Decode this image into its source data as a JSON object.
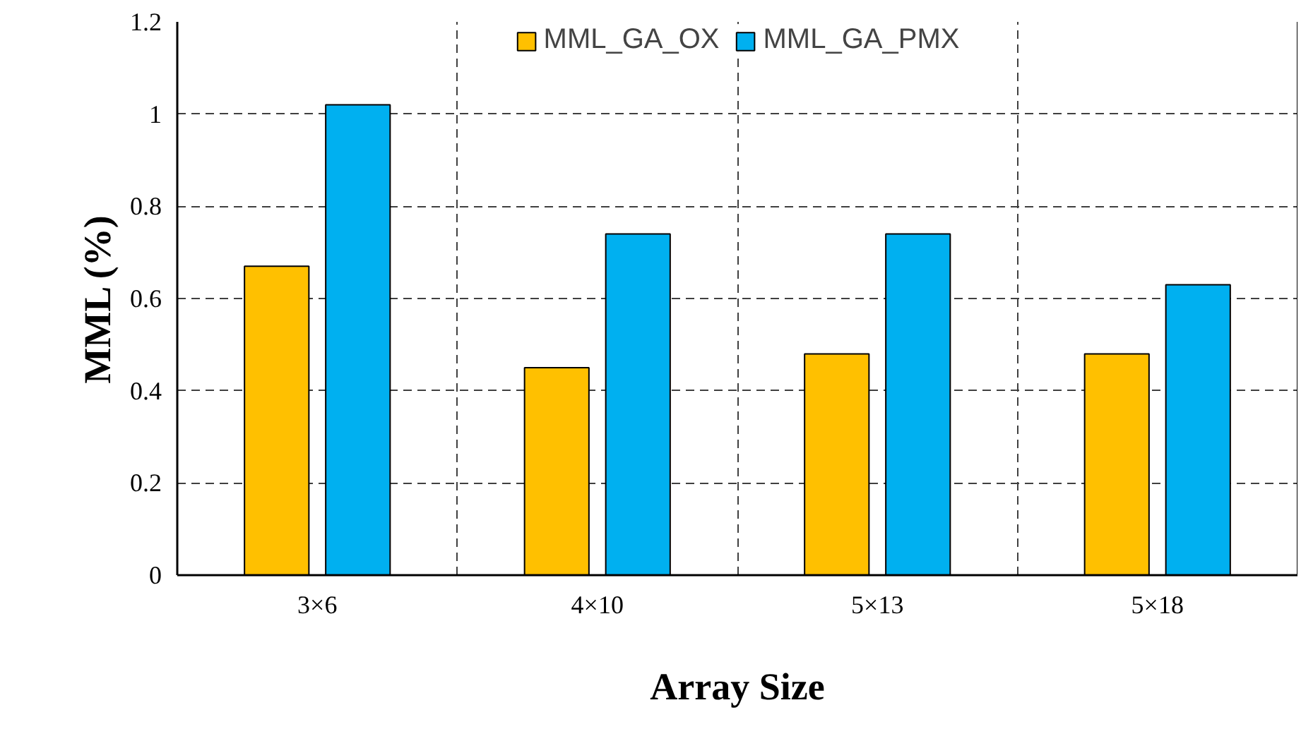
{
  "chart_data": {
    "type": "bar",
    "xlabel": "Array Size",
    "ylabel": "MML (%)",
    "categories": [
      "3×6",
      "4×10",
      "5×13",
      "5×18"
    ],
    "series": [
      {
        "name": "MML_GA_OX",
        "color": "#ffc000",
        "values": [
          0.67,
          0.45,
          0.48,
          0.48
        ]
      },
      {
        "name": "MML_GA_PMX",
        "color": "#00b0f0",
        "values": [
          1.02,
          0.74,
          0.74,
          0.63
        ]
      }
    ],
    "ylim": [
      0,
      1.2
    ],
    "yticks": [
      0,
      0.2,
      0.4,
      0.6,
      0.8,
      1,
      1.2
    ],
    "grid": true,
    "legend": "top"
  }
}
